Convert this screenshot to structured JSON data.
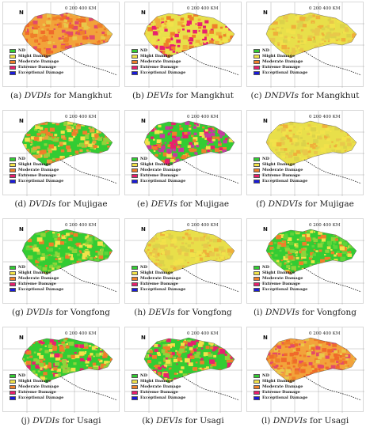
{
  "legend": [
    "ND",
    "Slight Damage",
    "Moderate Damage",
    "Extreme Damage",
    "Exceptional Damage"
  ],
  "legend_colors": [
    "#33cc33",
    "#f2e24a",
    "#ef7f2a",
    "#e8206e",
    "#1a1adb"
  ],
  "scale_text": "0      200    400 KM",
  "north_label": "N",
  "panels": [
    {
      "label": "(a)",
      "index": "DVDIs",
      "suffix": "for Mangkhut",
      "palette": "orange"
    },
    {
      "label": "(b)",
      "index": "DEVIs",
      "suffix": "for Mangkhut",
      "palette": "yellow-orange"
    },
    {
      "label": "(c)",
      "index": "DNDVIs",
      "suffix": "for Mangkhut",
      "palette": "yellow"
    },
    {
      "label": "(d)",
      "index": "DVDIs",
      "suffix": "for Mujigae",
      "palette": "green-yellow"
    },
    {
      "label": "(e)",
      "index": "DEVIs",
      "suffix": "for Mujigae",
      "palette": "magenta"
    },
    {
      "label": "(f)",
      "index": "DNDVIs",
      "suffix": "for Mujigae",
      "palette": "yellow"
    },
    {
      "label": "(g)",
      "index": "DVDIs",
      "suffix": "for Vongfong",
      "palette": "green"
    },
    {
      "label": "(h)",
      "index": "DEVIs",
      "suffix": "for Vongfong",
      "palette": "yellow"
    },
    {
      "label": "(i)",
      "index": "DNDVIs",
      "suffix": "for Vongfong",
      "palette": "green"
    },
    {
      "label": "(j)",
      "index": "DVDIs",
      "suffix": "for Usagi",
      "palette": "green-orange"
    },
    {
      "label": "(k)",
      "index": "DEVIs",
      "suffix": "for Usagi",
      "palette": "green-orange"
    },
    {
      "label": "(l)",
      "index": "DNDVIs",
      "suffix": "for Usagi",
      "palette": "orange"
    }
  ]
}
